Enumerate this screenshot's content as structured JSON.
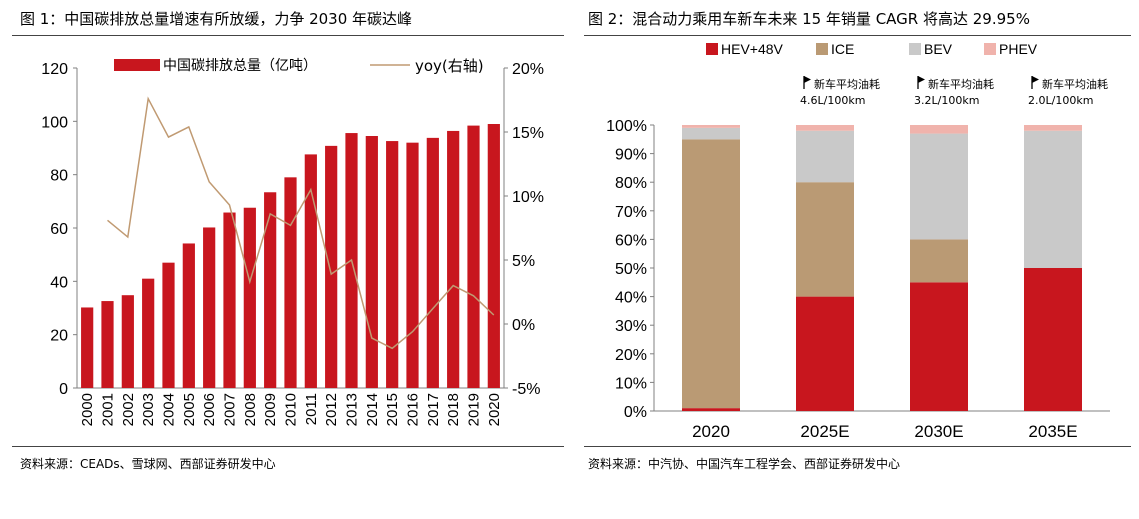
{
  "figure1": {
    "title": "图 1：中国碳排放总量增速有所放缓，力争 2030 年碳达峰",
    "source": "资料来源：CEADs、雪球网、西部证券研发中心"
  },
  "figure2": {
    "title": "图 2：混合动力乘用车新车未来 15 年销量 CAGR 将高达 29.95%",
    "source": "资料来源：中汽协、中国汽车工程学会、西部证券研发中心"
  },
  "chart_data": [
    {
      "type": "bar",
      "categories": [
        "2000",
        "2001",
        "2002",
        "2003",
        "2004",
        "2005",
        "2006",
        "2007",
        "2008",
        "2009",
        "2010",
        "2011",
        "2012",
        "2013",
        "2014",
        "2015",
        "2016",
        "2017",
        "2018",
        "2019",
        "2020"
      ],
      "series": [
        {
          "name": "中国碳排放总量（亿吨）",
          "type": "bar",
          "axis": "left",
          "color": "#C8161E",
          "values": [
            30.2,
            32.6,
            34.8,
            41.0,
            47.0,
            54.2,
            60.2,
            65.8,
            67.6,
            73.4,
            79.0,
            87.6,
            90.8,
            95.6,
            94.5,
            92.6,
            92.0,
            93.8,
            96.4,
            98.4,
            99.0
          ]
        },
        {
          "name": "yoy(右轴)",
          "type": "line",
          "axis": "right",
          "color": "#C09A72",
          "values": [
            null,
            8.1,
            6.8,
            17.6,
            14.6,
            15.4,
            11.1,
            9.3,
            3.3,
            8.6,
            7.7,
            10.5,
            3.9,
            5.0,
            -1.1,
            -1.9,
            -0.6,
            1.2,
            3.0,
            2.2,
            0.7
          ]
        }
      ],
      "ylim_left": [
        0,
        120
      ],
      "yticks_left": [
        "0",
        "20",
        "40",
        "60",
        "80",
        "100",
        "120"
      ],
      "ylim_right": [
        -5,
        20
      ],
      "yticks_right": [
        "-5%",
        "0%",
        "5%",
        "10%",
        "15%",
        "20%"
      ],
      "legend_position": "top"
    },
    {
      "type": "bar",
      "stacked": true,
      "categories": [
        "2020",
        "2025E",
        "2030E",
        "2035E"
      ],
      "series": [
        {
          "name": "HEV+48V",
          "color": "#C8161E",
          "values": [
            1,
            40,
            45,
            50
          ]
        },
        {
          "name": "ICE",
          "color": "#BA9A74",
          "values": [
            94,
            40,
            15,
            0
          ]
        },
        {
          "name": "BEV",
          "color": "#C9C9C9",
          "values": [
            4,
            18,
            37,
            48
          ]
        },
        {
          "name": "PHEV",
          "color": "#F0B3AC",
          "values": [
            1,
            2,
            3,
            2
          ]
        }
      ],
      "ylim": [
        0,
        100
      ],
      "yticks": [
        "0%",
        "10%",
        "20%",
        "30%",
        "40%",
        "50%",
        "60%",
        "70%",
        "80%",
        "90%",
        "100%"
      ],
      "annotations": [
        {
          "category": "2025E",
          "line1": "新车平均油耗",
          "line2": "4.6L/100km"
        },
        {
          "category": "2030E",
          "line1": "新车平均油耗",
          "line2": "3.2L/100km"
        },
        {
          "category": "2035E",
          "line1": "新车平均油耗",
          "line2": "2.0L/100km"
        }
      ],
      "legend_position": "top"
    }
  ]
}
